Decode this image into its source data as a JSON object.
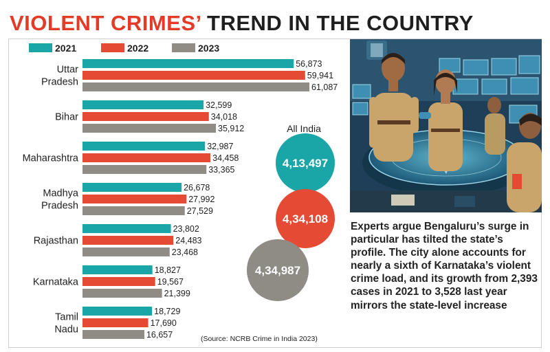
{
  "header": {
    "title_red": "VIOLENT CRIMES’",
    "title_rest": "TREND IN THE COUNTRY"
  },
  "colors": {
    "2021": "#1aa6a6",
    "2022": "#e54a35",
    "2023": "#8f8c85"
  },
  "chart_data": {
    "type": "bar",
    "orientation": "horizontal",
    "categories": [
      [
        "Uttar",
        "Pradesh"
      ],
      [
        "Bihar"
      ],
      [
        "Maharashtra"
      ],
      [
        "Madhya",
        "Pradesh"
      ],
      [
        "Rajasthan"
      ],
      [
        "Karnataka"
      ],
      [
        "Tamil",
        "Nadu"
      ]
    ],
    "series": [
      {
        "name": "2021",
        "values": [
          56873,
          32599,
          32987,
          26678,
          23802,
          18827,
          18729
        ],
        "labels": [
          "56,873",
          "32,599",
          "32,987",
          "26,678",
          "23,802",
          "18,827",
          "18,729"
        ]
      },
      {
        "name": "2022",
        "values": [
          59941,
          34018,
          34458,
          27992,
          24483,
          19567,
          17690
        ],
        "labels": [
          "59,941",
          "34,018",
          "34,458",
          "27,992",
          "24,483",
          "19,567",
          "17,690"
        ]
      },
      {
        "name": "2023",
        "values": [
          61087,
          35912,
          33365,
          27529,
          23468,
          21399,
          16657
        ],
        "labels": [
          "61,087",
          "35,912",
          "33,365",
          "27,529",
          "23,468",
          "21,399",
          "16,657"
        ]
      }
    ],
    "all_india": {
      "label": "All India",
      "values": [
        {
          "year": "2021",
          "value": 413497,
          "label": "4,13,497"
        },
        {
          "year": "2022",
          "value": 434108,
          "label": "4,34,108"
        },
        {
          "year": "2023",
          "value": 434987,
          "label": "4,34,987"
        }
      ]
    },
    "source": "(Source: NCRB Crime in India 2023)"
  },
  "caption": "Experts argue Bengaluru’s surge in particular has tilted the state’s profile. The city alone accounts for nearly a sixth of Karnataka’s violent crime load, and its growth from 2,393 cases in 2021 to 3,528 last year mirrors the state-level increase"
}
